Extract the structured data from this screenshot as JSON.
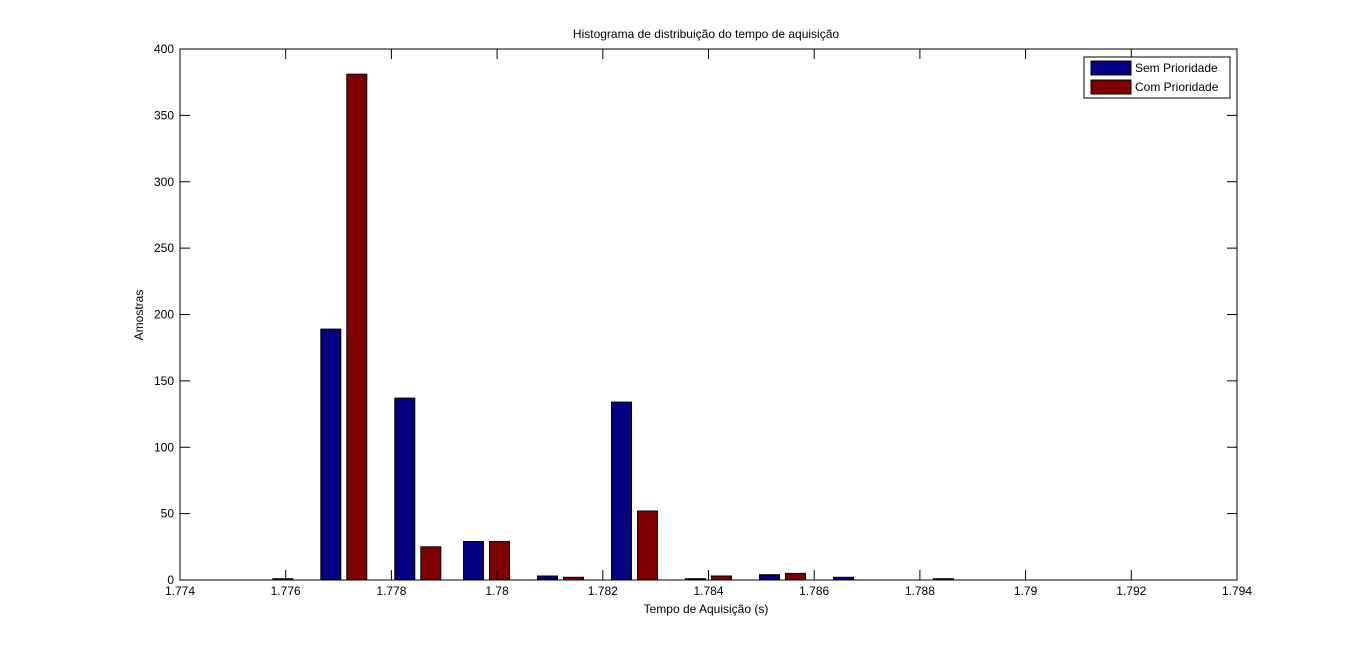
{
  "chart_data": {
    "type": "bar",
    "title": "Histograma de distribuição do tempo de aquisição",
    "xlabel": "Tempo de Aquisição (s)",
    "ylabel": "Amostras",
    "xlim": [
      1.774,
      1.794
    ],
    "ylim": [
      0,
      400
    ],
    "xticks": [
      "1.774",
      "1.776",
      "1.778",
      "1.78",
      "1.782",
      "1.784",
      "1.786",
      "1.788",
      "1.79",
      "1.792",
      "1.794"
    ],
    "yticks": [
      "0",
      "50",
      "100",
      "150",
      "200",
      "250",
      "300",
      "350",
      "400"
    ],
    "x": [
      1.7757,
      1.7771,
      1.7785,
      1.7798,
      1.7812,
      1.7826,
      1.784,
      1.7854,
      1.7868,
      1.7882,
      1.7896
    ],
    "series": [
      {
        "name": "Sem Prioridade",
        "color": "#000080",
        "values": [
          0,
          189,
          137,
          29,
          3,
          134,
          1,
          4,
          2,
          0,
          0
        ]
      },
      {
        "name": "Com Prioridade",
        "color": "#800000",
        "values": [
          1,
          381,
          25,
          29,
          2,
          52,
          3,
          5,
          0,
          1,
          0
        ]
      }
    ],
    "legend": "top-right",
    "grid": false
  }
}
